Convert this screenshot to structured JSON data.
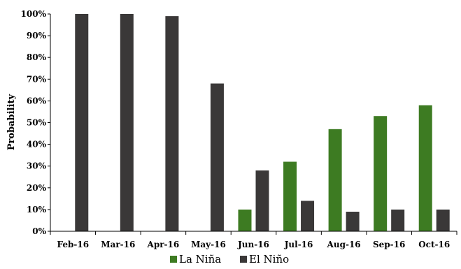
{
  "chart_data": {
    "type": "bar",
    "title": "",
    "xlabel": "",
    "ylabel": "Probability",
    "ylim": [
      0,
      100
    ],
    "y_ticks": [
      0,
      10,
      20,
      30,
      40,
      50,
      60,
      70,
      80,
      90,
      100
    ],
    "y_tick_format": "percent",
    "grid": false,
    "legend_position": "bottom-center",
    "categories": [
      "Feb-16",
      "Mar-16",
      "Apr-16",
      "May-16",
      "Jun-16",
      "Jul-16",
      "Aug-16",
      "Sep-16",
      "Oct-16"
    ],
    "series": [
      {
        "name": "La Niña",
        "color": "#3d7b22",
        "values": [
          0,
          0,
          0,
          0,
          10,
          32,
          47,
          53,
          58
        ]
      },
      {
        "name": "El Niño",
        "color": "#3a3838",
        "values": [
          100,
          100,
          99,
          68,
          28,
          14,
          9,
          10,
          10
        ]
      }
    ]
  }
}
